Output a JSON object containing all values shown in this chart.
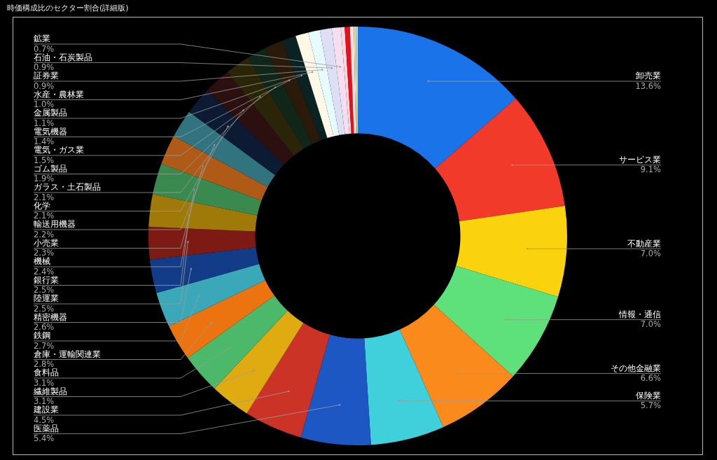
{
  "chart_data": {
    "type": "donut",
    "title": "時価構成比のセクター割合(詳細版)",
    "legend": false,
    "categories": [
      "卸売業",
      "サービス業",
      "不動産業",
      "情報・通信",
      "その他金融業",
      "保険業",
      "医薬品",
      "建設業",
      "繊維製品",
      "食料品",
      "倉庫・運輸関連業",
      "鉄鋼",
      "精密機器",
      "陸運業",
      "銀行業",
      "機械",
      "小売業",
      "輸送用機器",
      "化学",
      "ガラス・土石製品",
      "ゴム製品",
      "電気・ガス業",
      "電気機器",
      "金属製品",
      "水産・農林業",
      "証券業",
      "石油・石炭製品",
      "鉱業",
      null,
      null,
      null,
      null,
      null
    ],
    "values": [
      13.6,
      9.1,
      7.0,
      7.0,
      6.6,
      5.7,
      5.4,
      4.5,
      3.1,
      3.1,
      2.8,
      2.7,
      2.6,
      2.5,
      2.5,
      2.4,
      2.3,
      2.2,
      2.1,
      2.1,
      1.9,
      1.5,
      1.4,
      1.1,
      1.0,
      0.9,
      0.9,
      0.7,
      0.3,
      0.4,
      0.3,
      0.15,
      0.15
    ],
    "value_labels": [
      "13.6%",
      "9.1%",
      "7.0%",
      "7.0%",
      "6.6%",
      "5.7%",
      "5.4%",
      "4.5%",
      "3.1%",
      "3.1%",
      "2.8%",
      "2.7%",
      "2.6%",
      "2.5%",
      "2.5%",
      "2.4%",
      "2.3%",
      "2.2%",
      "2.1%",
      "2.1%",
      "1.9%",
      "1.5%",
      "1.4%",
      "1.1%",
      "1.0%",
      "0.9%",
      "0.9%",
      "0.7%",
      null,
      null,
      null,
      null,
      null
    ],
    "colors": [
      "#1a73e8",
      "#f23a2a",
      "#fbd20e",
      "#5ee07a",
      "#fb8a1c",
      "#40d0dc",
      "#1d57c4",
      "#cc3327",
      "#e0ab10",
      "#4bb86a",
      "#ec7410",
      "#3aa8b8",
      "#133c88",
      "#7e1a14",
      "#a07a08",
      "#3a8a50",
      "#b05a18",
      "#317480",
      "#0c1a33",
      "#2c1010",
      "#2a2508",
      "#0f2618",
      "#2a1a0a",
      "#0b2222",
      "#fff8e6",
      "#e6fbff",
      "#dde0f5",
      "#f5def0",
      "#f8d8e0",
      "#e8101c",
      "#fce0e8",
      "#f8e08a",
      "#a8e0f8"
    ]
  }
}
